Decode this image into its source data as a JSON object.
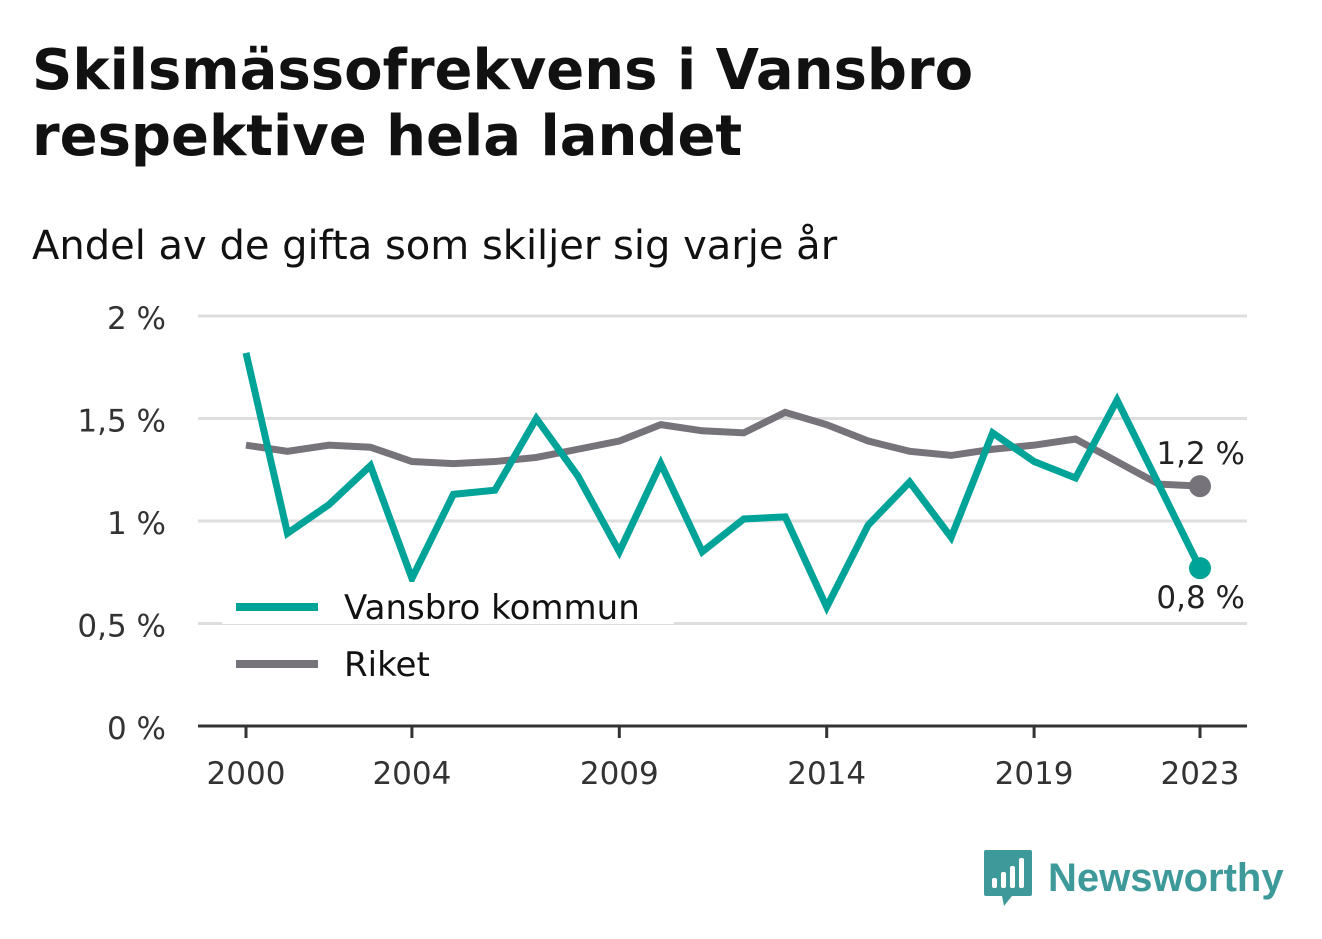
{
  "title": "Skilsmässofrekvens i Vansbro respektive hela landet",
  "subtitle": "Andel av de gifta som skiljer sig varje år",
  "brand": "Newsworthy",
  "colors": {
    "vansbro": "#00a398",
    "riket": "#76737b",
    "grid": "#dedede",
    "axis": "#333333",
    "brand": "#3e9a9a"
  },
  "chart_data": {
    "type": "line",
    "x": [
      2000,
      2001,
      2002,
      2003,
      2004,
      2005,
      2006,
      2007,
      2008,
      2009,
      2010,
      2011,
      2012,
      2013,
      2014,
      2015,
      2016,
      2017,
      2018,
      2019,
      2020,
      2021,
      2022,
      2023
    ],
    "x_ticks": [
      2000,
      2004,
      2009,
      2014,
      2019,
      2023
    ],
    "ylim": [
      0,
      2
    ],
    "y_ticks": [
      {
        "value": 0,
        "label": "0 %"
      },
      {
        "value": 0.5,
        "label": "0,5 %"
      },
      {
        "value": 1,
        "label": "1 %"
      },
      {
        "value": 1.5,
        "label": "1,5 %"
      },
      {
        "value": 2,
        "label": "2 %"
      }
    ],
    "series": [
      {
        "name": "Vansbro kommun",
        "color": "#00a398",
        "values": [
          1.82,
          0.94,
          1.08,
          1.27,
          0.72,
          1.13,
          1.15,
          1.5,
          1.22,
          0.85,
          1.28,
          0.85,
          1.01,
          1.02,
          0.58,
          0.98,
          1.19,
          0.92,
          1.43,
          1.29,
          1.21,
          1.59,
          1.18,
          0.77
        ],
        "end_label": "0,8 %"
      },
      {
        "name": "Riket",
        "color": "#76737b",
        "values": [
          1.37,
          1.34,
          1.37,
          1.36,
          1.29,
          1.28,
          1.29,
          1.31,
          1.35,
          1.39,
          1.47,
          1.44,
          1.43,
          1.53,
          1.47,
          1.39,
          1.34,
          1.32,
          1.35,
          1.37,
          1.4,
          1.29,
          1.18,
          1.17
        ],
        "end_label": "1,2 %"
      }
    ],
    "legend_position": "bottom-left",
    "grid": true
  }
}
